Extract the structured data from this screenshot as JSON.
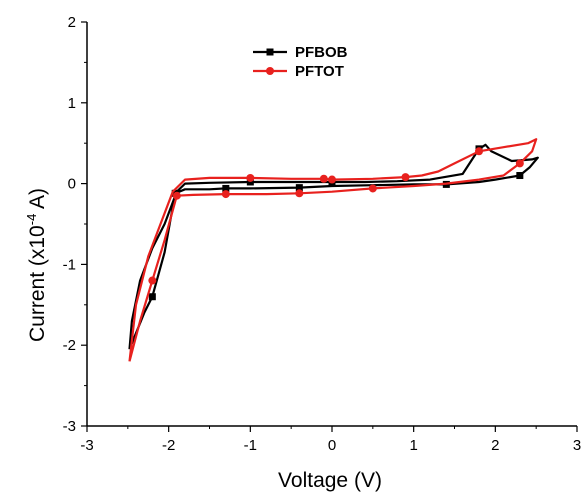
{
  "chart_data": {
    "type": "line",
    "title": "",
    "xlabel": "Voltage (V)",
    "ylabel_prefix": "Current (x10",
    "ylabel_exponent": "-4",
    "ylabel_suffix": " A)",
    "xlim": [
      -3,
      3
    ],
    "ylim": [
      -3,
      2
    ],
    "x_ticks": [
      -3,
      -2,
      -1,
      0,
      1,
      2,
      3
    ],
    "y_ticks": [
      -3,
      -2,
      -1,
      0,
      1,
      2
    ],
    "x_tick_labels": [
      "-3",
      "-2",
      "-1",
      "0",
      "1",
      "2",
      "3"
    ],
    "y_tick_labels": [
      "-3",
      "-2",
      "-1",
      "0",
      "1",
      "2"
    ],
    "grid": false,
    "legend_position": "top-center",
    "series": [
      {
        "name": "PFBOB",
        "color": "#000000",
        "marker": "square",
        "x": [
          -2.48,
          -2.3,
          -2.2,
          -2.05,
          -1.92,
          -1.8,
          -1.5,
          -1.3,
          -1.0,
          -0.4,
          0.0,
          0.5,
          1.0,
          1.4,
          1.8,
          2.0,
          2.3,
          2.42,
          2.52,
          2.45,
          2.2,
          1.95,
          1.88,
          1.8,
          1.6,
          1.2,
          0.8,
          0.4,
          -0.1,
          -0.5,
          -1.0,
          -1.5,
          -1.8,
          -1.9,
          -2.05,
          -2.2,
          -2.35,
          -2.45,
          -2.48
        ],
        "y": [
          -2.05,
          -1.6,
          -1.4,
          -0.85,
          -0.12,
          -0.07,
          -0.07,
          -0.06,
          -0.06,
          -0.05,
          -0.03,
          -0.02,
          -0.01,
          -0.01,
          0.02,
          0.05,
          0.1,
          0.2,
          0.32,
          0.3,
          0.28,
          0.4,
          0.48,
          0.43,
          0.12,
          0.05,
          0.03,
          0.02,
          0.02,
          0.02,
          0.02,
          0.01,
          0.0,
          -0.1,
          -0.5,
          -0.8,
          -1.2,
          -1.7,
          -2.05
        ],
        "markers_x": [
          -2.2,
          -1.92,
          -1.3,
          -1.0,
          -0.4,
          0.0,
          1.4,
          1.8,
          2.3
        ],
        "markers_y": [
          -1.4,
          -0.12,
          -0.06,
          0.02,
          -0.05,
          0.02,
          -0.01,
          0.43,
          0.1
        ]
      },
      {
        "name": "PFTOT",
        "color": "#e8211e",
        "marker": "circle",
        "x": [
          -2.48,
          -2.35,
          -2.2,
          -2.05,
          -1.9,
          -1.7,
          -1.3,
          -0.8,
          -0.4,
          0.0,
          0.5,
          1.0,
          1.4,
          1.8,
          2.1,
          2.3,
          2.45,
          2.5,
          2.4,
          2.1,
          1.8,
          1.5,
          1.3,
          1.1,
          0.9,
          0.5,
          0.0,
          -0.1,
          -0.5,
          -1.0,
          -1.5,
          -1.8,
          -1.95,
          -2.1,
          -2.25,
          -2.4,
          -2.48
        ],
        "y": [
          -2.2,
          -1.7,
          -1.2,
          -0.7,
          -0.15,
          -0.14,
          -0.13,
          -0.13,
          -0.12,
          -0.1,
          -0.06,
          -0.03,
          0.0,
          0.05,
          0.1,
          0.25,
          0.4,
          0.55,
          0.5,
          0.45,
          0.4,
          0.25,
          0.15,
          0.1,
          0.08,
          0.06,
          0.05,
          0.06,
          0.06,
          0.07,
          0.07,
          0.05,
          -0.1,
          -0.5,
          -0.9,
          -1.5,
          -2.2
        ],
        "markers_x": [
          -2.2,
          -1.9,
          -1.3,
          -1.0,
          -0.4,
          -0.1,
          0.0,
          0.5,
          0.9,
          1.8,
          2.3
        ],
        "markers_y": [
          -1.2,
          -0.15,
          -0.13,
          0.07,
          -0.12,
          0.06,
          0.05,
          -0.06,
          0.08,
          0.4,
          0.25
        ]
      }
    ]
  }
}
